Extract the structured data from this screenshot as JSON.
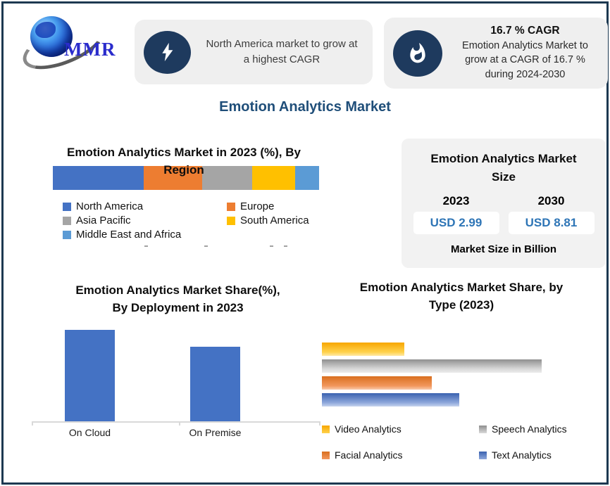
{
  "logo": {
    "text": "MMR"
  },
  "callouts": [
    {
      "icon": "lightning-bolt",
      "lines": [
        "North America market to grow at",
        "a highest CAGR"
      ]
    },
    {
      "icon": "flame",
      "title": "16.7 % CAGR",
      "lines": [
        "Emotion Analytics Market to",
        "grow at a CAGR of 16.7 %",
        "during 2024-2030"
      ]
    }
  ],
  "page_title": "Emotion Analytics Market",
  "market_size_card": {
    "title_lines": [
      "Emotion Analytics Market",
      "Size"
    ],
    "columns": [
      {
        "year": "2023",
        "value": "USD 2.99"
      },
      {
        "year": "2030",
        "value": "USD 8.81"
      }
    ],
    "footnote": "Market Size in Billion"
  },
  "colors": {
    "frame_navy": "#1d3951",
    "badge_navy": "#1e3a5e",
    "title_navy": "#1f4e79",
    "callout_bg": "#efefef",
    "card_bg": "#f2f2f2",
    "value_blue": "#2e75b6",
    "axis_gray": "#d9d9d9"
  },
  "chart_data": [
    {
      "type": "bar",
      "variant": "stacked-horizontal",
      "title": "Emotion Analytics Market in 2023 (%), By Region",
      "title_lines": [
        "Emotion Analytics Market in 2023 (%), By",
        "Region"
      ],
      "categories": [
        "North America",
        "Europe",
        "Asia Pacific",
        "South America",
        "Middle East and Africa"
      ],
      "values": [
        34,
        22,
        19,
        16,
        9
      ],
      "colors": [
        "#4472c4",
        "#ed7d31",
        "#a5a5a5",
        "#ffc000",
        "#5b9bd5"
      ],
      "unit": "%",
      "value_labels_shown": false,
      "legend_position": "bottom"
    },
    {
      "type": "bar",
      "variant": "vertical",
      "title": "Emotion Analytics Market Share(%), By Deployment in 2023",
      "title_lines": [
        "Emotion Analytics Market Share(%),",
        "By Deployment in 2023"
      ],
      "categories": [
        "On Cloud",
        "On Premise"
      ],
      "values": [
        55,
        45
      ],
      "color": "#4472c4",
      "unit": "%",
      "value_labels_shown": false,
      "axis": "baseline-only"
    },
    {
      "type": "bar",
      "variant": "horizontal",
      "title": "Emotion Analytics Market Share, by Type (2023)",
      "title_lines": [
        "Emotion Analytics Market Share, by",
        "Type (2023)"
      ],
      "categories": [
        "Video Analytics",
        "Speech Analytics",
        "Facial Analytics",
        "Text Analytics"
      ],
      "values": [
        15,
        40,
        20,
        25
      ],
      "colors": [
        "#ffc000",
        "#a5a5a5",
        "#ed7d31",
        "#4472c4"
      ],
      "gradients": [
        [
          "#f7a600",
          "#ffd24d"
        ],
        [
          "#8f8f8f",
          "#d9d9d9"
        ],
        [
          "#d96f1e",
          "#f2975c"
        ],
        [
          "#3a62b0",
          "#8fa8dc"
        ]
      ],
      "unit": "%",
      "value_labels_shown": false,
      "legend_position": "bottom"
    }
  ]
}
